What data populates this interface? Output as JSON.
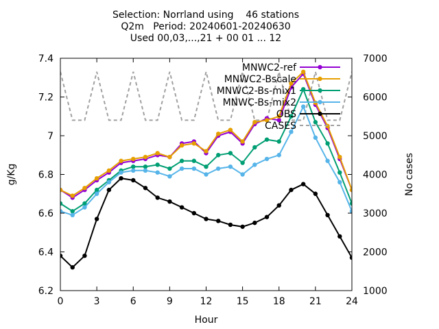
{
  "title_lines": [
    "Selection: Norrland using    46 stations",
    "Q2m   Period: 20240601-20240630",
    "Used 00,03,...,21 + 00 01 ... 12"
  ],
  "chart_data": {
    "type": "line",
    "xlabel": "Hour",
    "ylabel": "g/Kg",
    "y2label": "No cases",
    "xlim": [
      0,
      24
    ],
    "ylim": [
      6.2,
      7.4
    ],
    "y2lim": [
      1000,
      7000
    ],
    "xticks": [
      0,
      3,
      6,
      9,
      12,
      15,
      18,
      21,
      24
    ],
    "xtick_labels": [
      "0",
      "3",
      "6",
      "9",
      "12",
      "15",
      "18",
      "21",
      "24"
    ],
    "yticks": [
      6.2,
      6.4,
      6.6,
      6.8,
      7.0,
      7.2,
      7.4
    ],
    "ytick_labels": [
      "6.2",
      "6.4",
      "6.6",
      "6.8",
      "7",
      "7.2",
      "7.4"
    ],
    "y2ticks": [
      1000,
      2000,
      3000,
      4000,
      5000,
      6000,
      7000
    ],
    "y2tick_labels": [
      "1000",
      "2000",
      "3000",
      "4000",
      "5000",
      "6000",
      "7000"
    ],
    "legend_position": "top-right",
    "grid": false,
    "x": [
      0,
      1,
      2,
      3,
      4,
      5,
      6,
      7,
      8,
      9,
      10,
      11,
      12,
      13,
      14,
      15,
      16,
      17,
      18,
      19,
      20,
      21,
      22,
      23,
      24
    ],
    "series": [
      {
        "name": "MNWC2-ref",
        "color": "#9400d3",
        "axis": "y",
        "values": [
          6.72,
          6.68,
          6.72,
          6.77,
          6.81,
          6.86,
          6.87,
          6.88,
          6.9,
          6.89,
          6.96,
          6.97,
          6.91,
          7.0,
          7.02,
          6.96,
          7.06,
          7.09,
          7.08,
          7.25,
          7.32,
          7.16,
          7.04,
          6.88,
          6.72
        ]
      },
      {
        "name": "MNWC2-Bscale",
        "color": "#e69f00",
        "axis": "y",
        "values": [
          6.72,
          6.69,
          6.73,
          6.78,
          6.82,
          6.87,
          6.88,
          6.89,
          6.91,
          6.89,
          6.95,
          6.96,
          6.92,
          7.01,
          7.03,
          6.97,
          7.07,
          7.08,
          7.1,
          7.27,
          7.33,
          7.17,
          7.05,
          6.89,
          6.72
        ]
      },
      {
        "name": "MNWC2-Bs-mix1",
        "color": "#009e73",
        "axis": "y",
        "values": [
          6.65,
          6.61,
          6.65,
          6.72,
          6.77,
          6.82,
          6.84,
          6.84,
          6.85,
          6.83,
          6.87,
          6.87,
          6.84,
          6.9,
          6.91,
          6.86,
          6.94,
          6.98,
          6.97,
          7.1,
          7.24,
          7.07,
          6.96,
          6.81,
          6.65
        ]
      },
      {
        "name": "MNWC-Bs-mix2",
        "color": "#56b4e9",
        "axis": "y",
        "values": [
          6.61,
          6.59,
          6.63,
          6.7,
          6.76,
          6.81,
          6.82,
          6.82,
          6.81,
          6.79,
          6.83,
          6.83,
          6.8,
          6.83,
          6.84,
          6.8,
          6.85,
          6.88,
          6.9,
          7.02,
          7.15,
          6.99,
          6.87,
          6.76,
          6.61
        ]
      },
      {
        "name": "OBS",
        "color": "#000000",
        "axis": "y",
        "values": [
          6.38,
          6.32,
          6.38,
          6.57,
          6.72,
          6.78,
          6.77,
          6.73,
          6.68,
          6.66,
          6.63,
          6.6,
          6.57,
          6.56,
          6.54,
          6.53,
          6.55,
          6.58,
          6.64,
          6.72,
          6.75,
          6.7,
          6.59,
          6.48,
          6.37
        ]
      },
      {
        "name": "CASES",
        "color": "#a0a0a0",
        "axis": "y2",
        "dashed": true,
        "values": [
          6650,
          5400,
          5400,
          6650,
          5400,
          5400,
          6650,
          5400,
          5400,
          6650,
          5400,
          5400,
          6650,
          5400,
          5400,
          6650,
          5400,
          5400,
          6650,
          5400,
          5400,
          6650,
          5400,
          5400,
          6650
        ]
      }
    ]
  }
}
